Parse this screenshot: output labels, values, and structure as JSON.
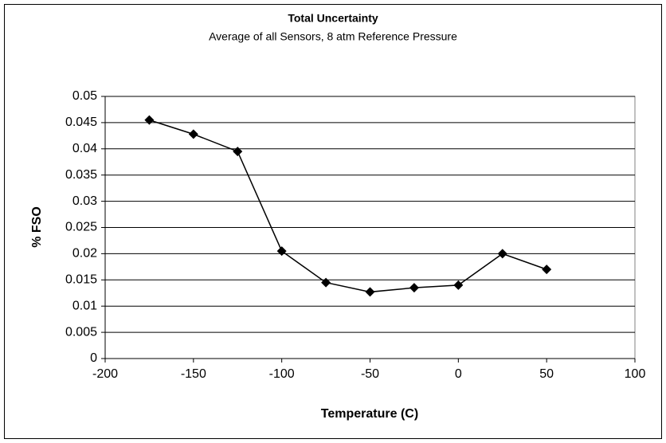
{
  "chart_data": {
    "type": "line",
    "title": "Total Uncertainty",
    "subtitle": "Average of all Sensors, 8 atm Reference Pressure",
    "xlabel": "Temperature (C)",
    "ylabel": "% FSO",
    "x": [
      -175,
      -150,
      -125,
      -100,
      -75,
      -50,
      -25,
      0,
      25,
      50
    ],
    "series": [
      {
        "color": "#000000",
        "values": [
          0.0455,
          0.0428,
          0.0395,
          0.0205,
          0.0145,
          0.0127,
          0.0135,
          0.014,
          0.02,
          0.017
        ]
      }
    ],
    "xlim": [
      -200,
      100
    ],
    "xticks": [
      -200,
      -150,
      -100,
      -50,
      0,
      50,
      100
    ],
    "ylim": [
      0,
      0.05
    ],
    "yticks": [
      0,
      0.005,
      0.01,
      0.015,
      0.02,
      0.025,
      0.03,
      0.035,
      0.04,
      0.045,
      0.05
    ],
    "grid": true
  }
}
